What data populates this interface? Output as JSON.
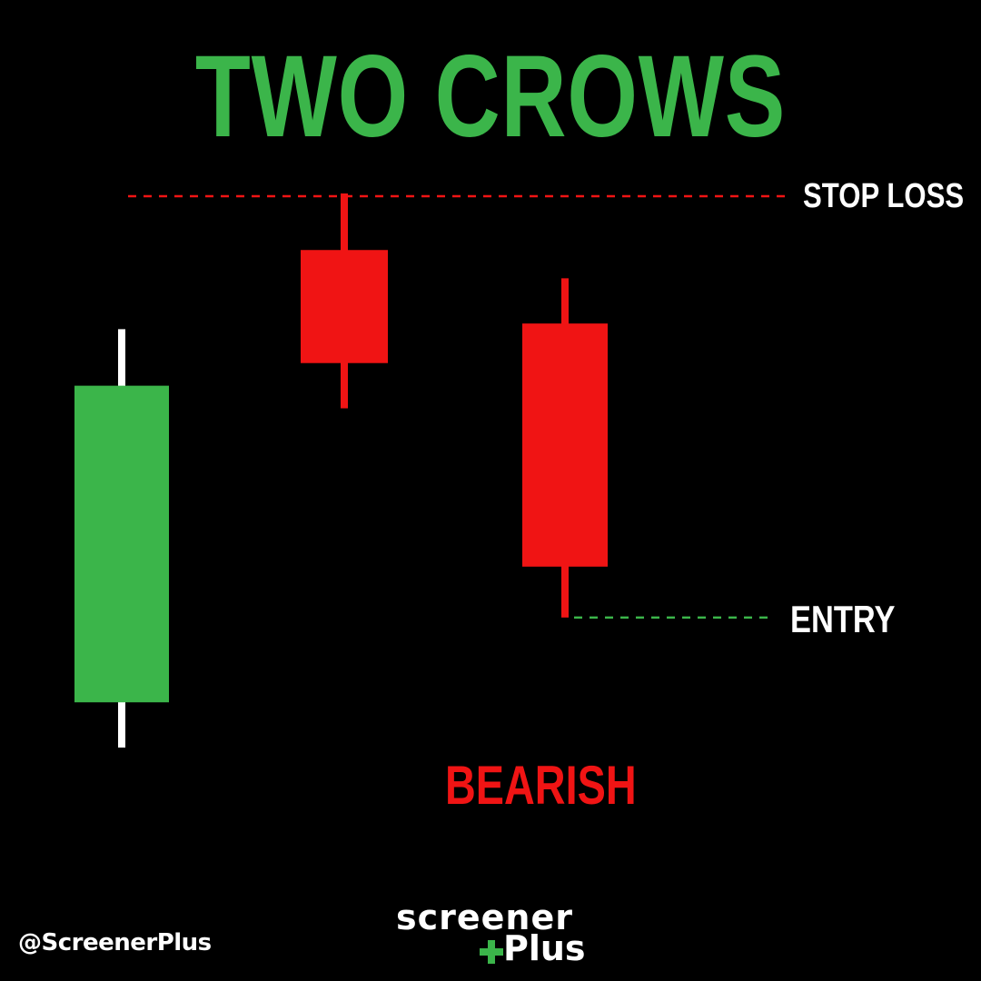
{
  "title": "TWO CROWS",
  "pattern_bias": "BEARISH",
  "levels": {
    "stop_loss": "STOP LOSS",
    "entry": "ENTRY"
  },
  "colors": {
    "background": "#000000",
    "title": "#3bb54a",
    "bullish": "#3bb54a",
    "bearish": "#f01414",
    "wick_bullish": "#ffffff",
    "wick_bearish": "#f01414",
    "stop_loss_line": "#f01414",
    "entry_line": "#3bb54a",
    "label_text": "#ffffff"
  },
  "footer": {
    "handle": "@ScreenerPlus",
    "logo_line1": "screener",
    "logo_line2": "Plus",
    "logo_icon": "plus-icon"
  },
  "chart_data": {
    "type": "candlestick",
    "candles": [
      {
        "direction": "up",
        "open": 30,
        "close": 86,
        "high": 96,
        "low": 22
      },
      {
        "direction": "down",
        "open": 110,
        "close": 90,
        "high": 120,
        "low": 82
      },
      {
        "direction": "down",
        "open": 97,
        "close": 54,
        "high": 105,
        "low": 45
      }
    ],
    "levels": [
      {
        "label": "STOP LOSS",
        "value": 120,
        "style": "dashed"
      },
      {
        "label": "ENTRY",
        "value": 45,
        "style": "dashed"
      }
    ]
  }
}
